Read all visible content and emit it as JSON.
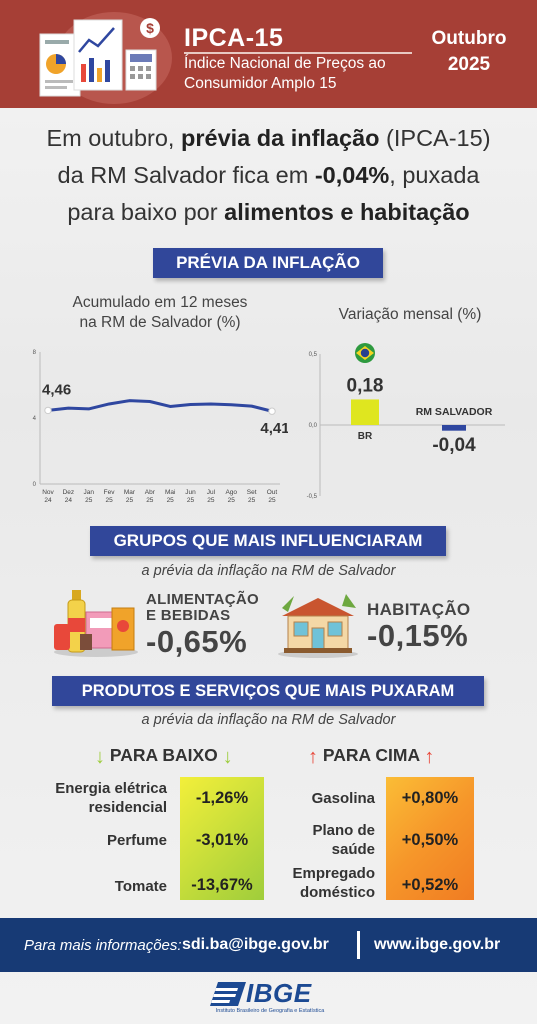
{
  "header": {
    "title": "IPCA-15",
    "subtitle_line1": "Índice Nacional de Preços ao",
    "subtitle_line2": "Consumidor Amplo 15",
    "month": "Outubro",
    "year": "2025",
    "colors": {
      "background": "#a63f36"
    }
  },
  "headline": {
    "p1": "Em outubro, ",
    "b1": "prévia da inflação",
    "p2": " (IPCA-15)",
    "p3": "da RM Salvador fica em ",
    "b2": "-0,04%",
    "p4": ", puxada",
    "p5": "para baixo por ",
    "b3": "alimentos e habitação"
  },
  "section1": {
    "banner": "PRÉVIA DA INFLAÇÃO",
    "left_caption_line1": "Acumulado em 12 meses",
    "left_caption_line2": "na RM de Salvador (%)",
    "right_caption": "Variação mensal (%)"
  },
  "chart_data": [
    {
      "type": "line",
      "title": "Acumulado em 12 meses na RM de Salvador (%)",
      "x": [
        [
          "Nov",
          "24"
        ],
        [
          "Dez",
          "24"
        ],
        [
          "Jan",
          "25"
        ],
        [
          "Fev",
          "25"
        ],
        [
          "Mar",
          "25"
        ],
        [
          "Abr",
          "25"
        ],
        [
          "Mai",
          "25"
        ],
        [
          "Jun",
          "25"
        ],
        [
          "Jul",
          "25"
        ],
        [
          "Ago",
          "25"
        ],
        [
          "Set",
          "25"
        ],
        [
          "Out",
          "25"
        ]
      ],
      "series": [
        {
          "values": [
            4.46,
            4.6,
            4.55,
            4.85,
            5.05,
            5.0,
            4.7,
            4.82,
            4.85,
            4.8,
            4.72,
            4.41
          ]
        }
      ],
      "ylim": [
        0,
        8
      ],
      "yticks": [
        "0",
        "4",
        "8"
      ],
      "data_labels": {
        "first": "4,46",
        "last": "4,41"
      },
      "line_color": "#2f47a0"
    },
    {
      "type": "bar",
      "title": "Variação mensal (%)",
      "categories": [
        "BR",
        "RM SALVADOR"
      ],
      "values": [
        0.18,
        -0.04
      ],
      "value_labels": [
        "0,18",
        "-0,04"
      ],
      "ylim": [
        -0.5,
        0.5
      ],
      "yticks": [
        "0,5",
        "0,0",
        "-0,5"
      ],
      "colors": [
        "#dfe61f",
        "#2f47a0"
      ]
    }
  ],
  "section2": {
    "banner": "GRUPOS QUE MAIS INFLUENCIARAM",
    "subtitle": "a prévia da inflação na RM de Salvador",
    "groups": [
      {
        "name_line1": "ALIMENTAÇÃO",
        "name_line2": "E BEBIDAS",
        "value": "-0,65%",
        "icon": "groceries-icon"
      },
      {
        "name_line1": "HABITAÇÃO",
        "name_line2": "",
        "value": "-0,15%",
        "icon": "house-icon"
      }
    ]
  },
  "section3": {
    "banner": "PRODUTOS E SERVIÇOS QUE MAIS PUXARAM",
    "subtitle": "a prévia da inflação na RM de Salvador",
    "down_title": "PARA BAIXO",
    "up_title": "PARA CIMA",
    "down_items": [
      {
        "line1": "Energia elétrica",
        "line2": "residencial",
        "value": "-1,26%"
      },
      {
        "line1": "Perfume",
        "line2": "",
        "value": "-3,01%"
      },
      {
        "line1": "Tomate",
        "line2": "",
        "value": "-13,67%"
      }
    ],
    "up_items": [
      {
        "line1": "Gasolina",
        "line2": "",
        "value": "+0,80%"
      },
      {
        "line1": "Plano de",
        "line2": "saúde",
        "value": "+0,50%"
      },
      {
        "line1": "Empregado",
        "line2": "doméstico",
        "value": "+0,52%"
      }
    ],
    "colors": {
      "down_arrow": "#9ccc3b",
      "up_arrow": "#e8483a"
    }
  },
  "footer": {
    "label": "Para mais informações:",
    "email": "sdi.ba@ibge.gov.br",
    "site": "www.ibge.gov.br",
    "colors": {
      "background": "#173a75"
    }
  },
  "logo": {
    "name": "IBGE",
    "tagline": "Instituto Brasileiro de Geografia e Estatística"
  }
}
